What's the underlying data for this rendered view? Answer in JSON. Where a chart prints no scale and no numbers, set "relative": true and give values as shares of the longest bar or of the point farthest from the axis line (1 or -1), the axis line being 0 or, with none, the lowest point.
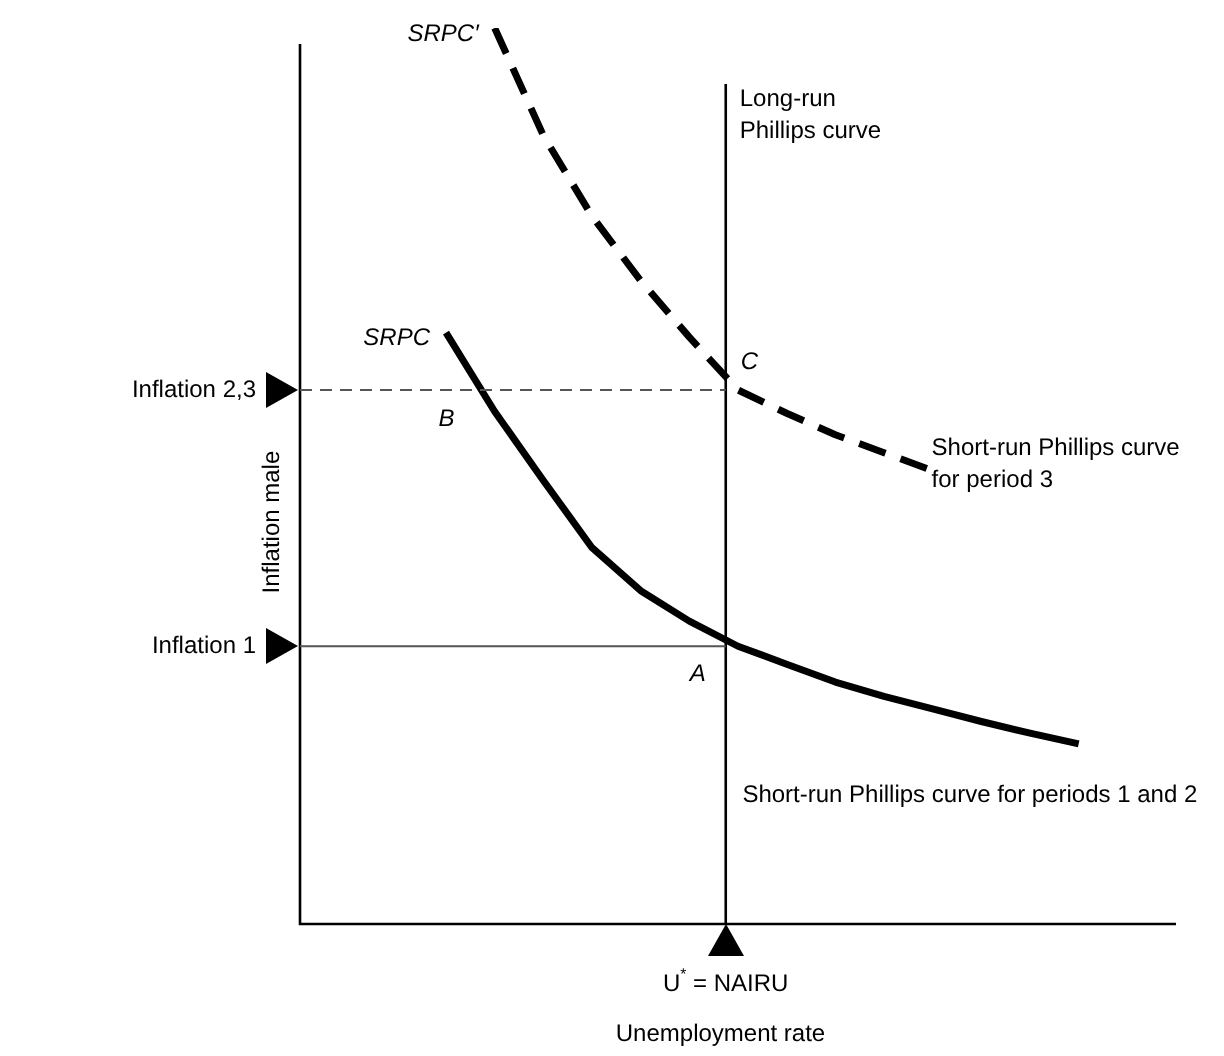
{
  "chart_data": {
    "type": "line",
    "relative": true,
    "ylabel": "Inflation male",
    "xlabel": "Unemployment rate",
    "legend": false,
    "marker": "none",
    "categories": [
      null,
      null,
      null,
      null,
      null,
      null,
      null,
      null,
      null,
      null,
      null,
      null,
      null,
      null,
      null,
      null,
      null,
      null,
      null
    ],
    "series": [
      {
        "name": "SRPC′",
        "color": "#000000",
        "line_style": "dashed",
        "values": [
          null,
          null,
          null,
          null,
          1.0,
          0.88,
          0.79,
          0.718,
          0.655,
          0.596,
          0.57,
          0.546,
          0.526,
          0.506,
          null,
          null,
          null,
          null,
          null
        ]
      },
      {
        "name": "SRPC",
        "color": "#000000",
        "line_style": "solid",
        "values": [
          null,
          null,
          null,
          0.66,
          0.572,
          0.495,
          0.42,
          0.372,
          0.338,
          0.31,
          0.29,
          0.27,
          0.254,
          0.24,
          0.226,
          0.213,
          0.201,
          null,
          null
        ]
      }
    ],
    "ref_lines": [
      {
        "axis": "y",
        "value": 0.596,
        "label": "Inflation 2,3",
        "color": "#555555",
        "line_style": "dashed"
      },
      {
        "axis": "y",
        "value": 0.31,
        "label": "Inflation 1",
        "color": "#555555",
        "line_style": "solid"
      }
    ],
    "annotations": [
      "Long-run Phillips curve",
      "A",
      "B",
      "C",
      "Short-run Phillips curve for period 3",
      "Short-run Phillips curve for periods 1 and 2",
      "U$^{*}$ = NAIRU"
    ]
  }
}
